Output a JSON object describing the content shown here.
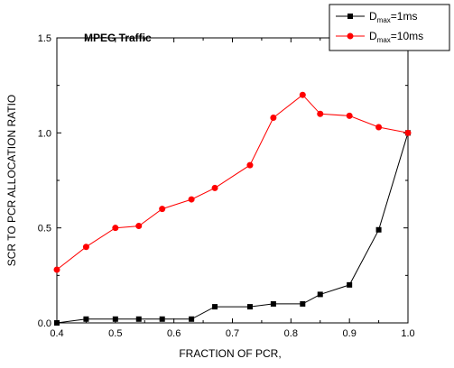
{
  "chart_data": {
    "type": "line",
    "title": "MPEG Traffic",
    "xlabel": "FRACTION OF PCR,",
    "ylabel": "SCR TO PCR ALLOCATION RATIO",
    "xlim": [
      0.4,
      1.0
    ],
    "ylim": [
      0.0,
      1.5
    ],
    "x_ticks": [
      "0.4",
      "0.5",
      "0.6",
      "0.7",
      "0.8",
      "0.9",
      "1.0"
    ],
    "y_ticks": [
      "0.0",
      "0.5",
      "1.0",
      "1.5"
    ],
    "grid": false,
    "legend_position": "top-right",
    "series": [
      {
        "legend": {
          "base": "D",
          "sub": "max",
          "suffix": "=1ms"
        },
        "color": "#000000",
        "marker": "square",
        "x": [
          0.4,
          0.45,
          0.5,
          0.54,
          0.58,
          0.63,
          0.67,
          0.73,
          0.77,
          0.82,
          0.85,
          0.9,
          0.95,
          1.0
        ],
        "y": [
          0.0,
          0.02,
          0.02,
          0.02,
          0.02,
          0.02,
          0.085,
          0.085,
          0.1,
          0.1,
          0.15,
          0.2,
          0.49,
          1.0
        ]
      },
      {
        "legend": {
          "base": "D",
          "sub": "max",
          "suffix": "=10ms"
        },
        "color": "#ff0000",
        "marker": "circle",
        "x": [
          0.4,
          0.45,
          0.5,
          0.54,
          0.58,
          0.63,
          0.67,
          0.73,
          0.77,
          0.82,
          0.85,
          0.9,
          0.95,
          1.0
        ],
        "y": [
          0.28,
          0.4,
          0.5,
          0.51,
          0.6,
          0.65,
          0.71,
          0.83,
          1.08,
          1.2,
          1.1,
          1.09,
          1.03,
          1.0
        ]
      }
    ]
  }
}
